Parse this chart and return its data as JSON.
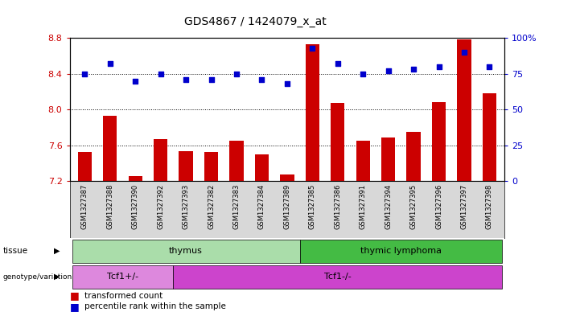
{
  "title": "GDS4867 / 1424079_x_at",
  "samples": [
    "GSM1327387",
    "GSM1327388",
    "GSM1327390",
    "GSM1327392",
    "GSM1327393",
    "GSM1327382",
    "GSM1327383",
    "GSM1327384",
    "GSM1327389",
    "GSM1327385",
    "GSM1327386",
    "GSM1327391",
    "GSM1327394",
    "GSM1327395",
    "GSM1327396",
    "GSM1327397",
    "GSM1327398"
  ],
  "bar_values": [
    7.52,
    7.93,
    7.25,
    7.67,
    7.53,
    7.52,
    7.65,
    7.5,
    7.27,
    8.73,
    8.07,
    7.65,
    7.69,
    7.75,
    8.08,
    8.78,
    8.18
  ],
  "scatter_values": [
    75,
    82,
    70,
    75,
    71,
    71,
    75,
    71,
    68,
    93,
    82,
    75,
    77,
    78,
    80,
    90,
    80
  ],
  "ylim_left": [
    7.2,
    8.8
  ],
  "ylim_right": [
    0,
    100
  ],
  "yticks_left": [
    7.2,
    7.6,
    8.0,
    8.4,
    8.8
  ],
  "yticks_right": [
    0,
    25,
    50,
    75,
    100
  ],
  "bar_color": "#cc0000",
  "scatter_color": "#0000cc",
  "tissue_groups": [
    {
      "label": "thymus",
      "start": 0,
      "end": 9,
      "color": "#aaddaa"
    },
    {
      "label": "thymic lymphoma",
      "start": 9,
      "end": 17,
      "color": "#44bb44"
    }
  ],
  "genotype_groups": [
    {
      "label": "Tcf1+/-",
      "start": 0,
      "end": 4,
      "color": "#dd88dd"
    },
    {
      "label": "Tcf1-/-",
      "start": 4,
      "end": 17,
      "color": "#cc44cc"
    }
  ],
  "legend_items": [
    {
      "label": "transformed count",
      "color": "#cc0000"
    },
    {
      "label": "percentile rank within the sample",
      "color": "#0000cc"
    }
  ],
  "left_label_color": "#cc0000",
  "right_label_color": "#0000cc",
  "sample_bg_color": "#d8d8d8",
  "grid_color": "#000000"
}
